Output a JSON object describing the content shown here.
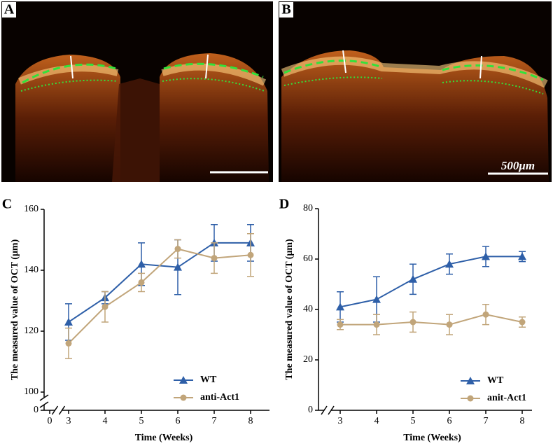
{
  "panel_labels": [
    "A",
    "B",
    "C",
    "D"
  ],
  "scale_bar_label": "500μm",
  "chart_data": [
    {
      "type": "line",
      "x_label": "Time (Weeks)",
      "y_label": "The measured value of OCT (μm)",
      "x": [
        3,
        4,
        5,
        6,
        7,
        8
      ],
      "xlim": [
        0,
        8
      ],
      "xticks": [
        0,
        3,
        4,
        5,
        6,
        7,
        8
      ],
      "ylim": [
        0,
        160
      ],
      "yticks": [
        0,
        100,
        120,
        140,
        160
      ],
      "x_axis_break": true,
      "y_axis_break": true,
      "legend": "lower right",
      "series": [
        {
          "name": "WT",
          "color": "#2e5fa8",
          "marker": "triangle",
          "values": [
            123,
            131,
            142,
            141,
            149,
            149
          ],
          "errors": [
            6,
            2,
            7,
            9,
            6,
            6
          ]
        },
        {
          "name": "anti-Act1",
          "color": "#c1a57a",
          "marker": "circle",
          "values": [
            116,
            128,
            136,
            147,
            144,
            145
          ],
          "errors": [
            5,
            5,
            3,
            3,
            5,
            7
          ]
        }
      ]
    },
    {
      "type": "line",
      "x_label": "Time (Weeks)",
      "y_label": "The measured value of OCT (μm)",
      "x": [
        3,
        4,
        5,
        6,
        7,
        8
      ],
      "xlim": [
        3,
        8
      ],
      "xticks": [
        3,
        4,
        5,
        6,
        7,
        8
      ],
      "ylim": [
        0,
        80
      ],
      "yticks": [
        0,
        20,
        40,
        60,
        80
      ],
      "x_axis_break": true,
      "y_axis_break": false,
      "legend": "lower right",
      "series": [
        {
          "name": "WT",
          "color": "#2e5fa8",
          "marker": "triangle",
          "values": [
            41,
            44,
            52,
            58,
            61,
            61
          ],
          "errors": [
            6,
            9,
            6,
            4,
            4,
            2
          ]
        },
        {
          "name": "anit-Act1",
          "color": "#c1a57a",
          "marker": "circle",
          "values": [
            34,
            34,
            35,
            34,
            38,
            35
          ],
          "errors": [
            2,
            4,
            4,
            4,
            4,
            2
          ]
        }
      ]
    }
  ]
}
